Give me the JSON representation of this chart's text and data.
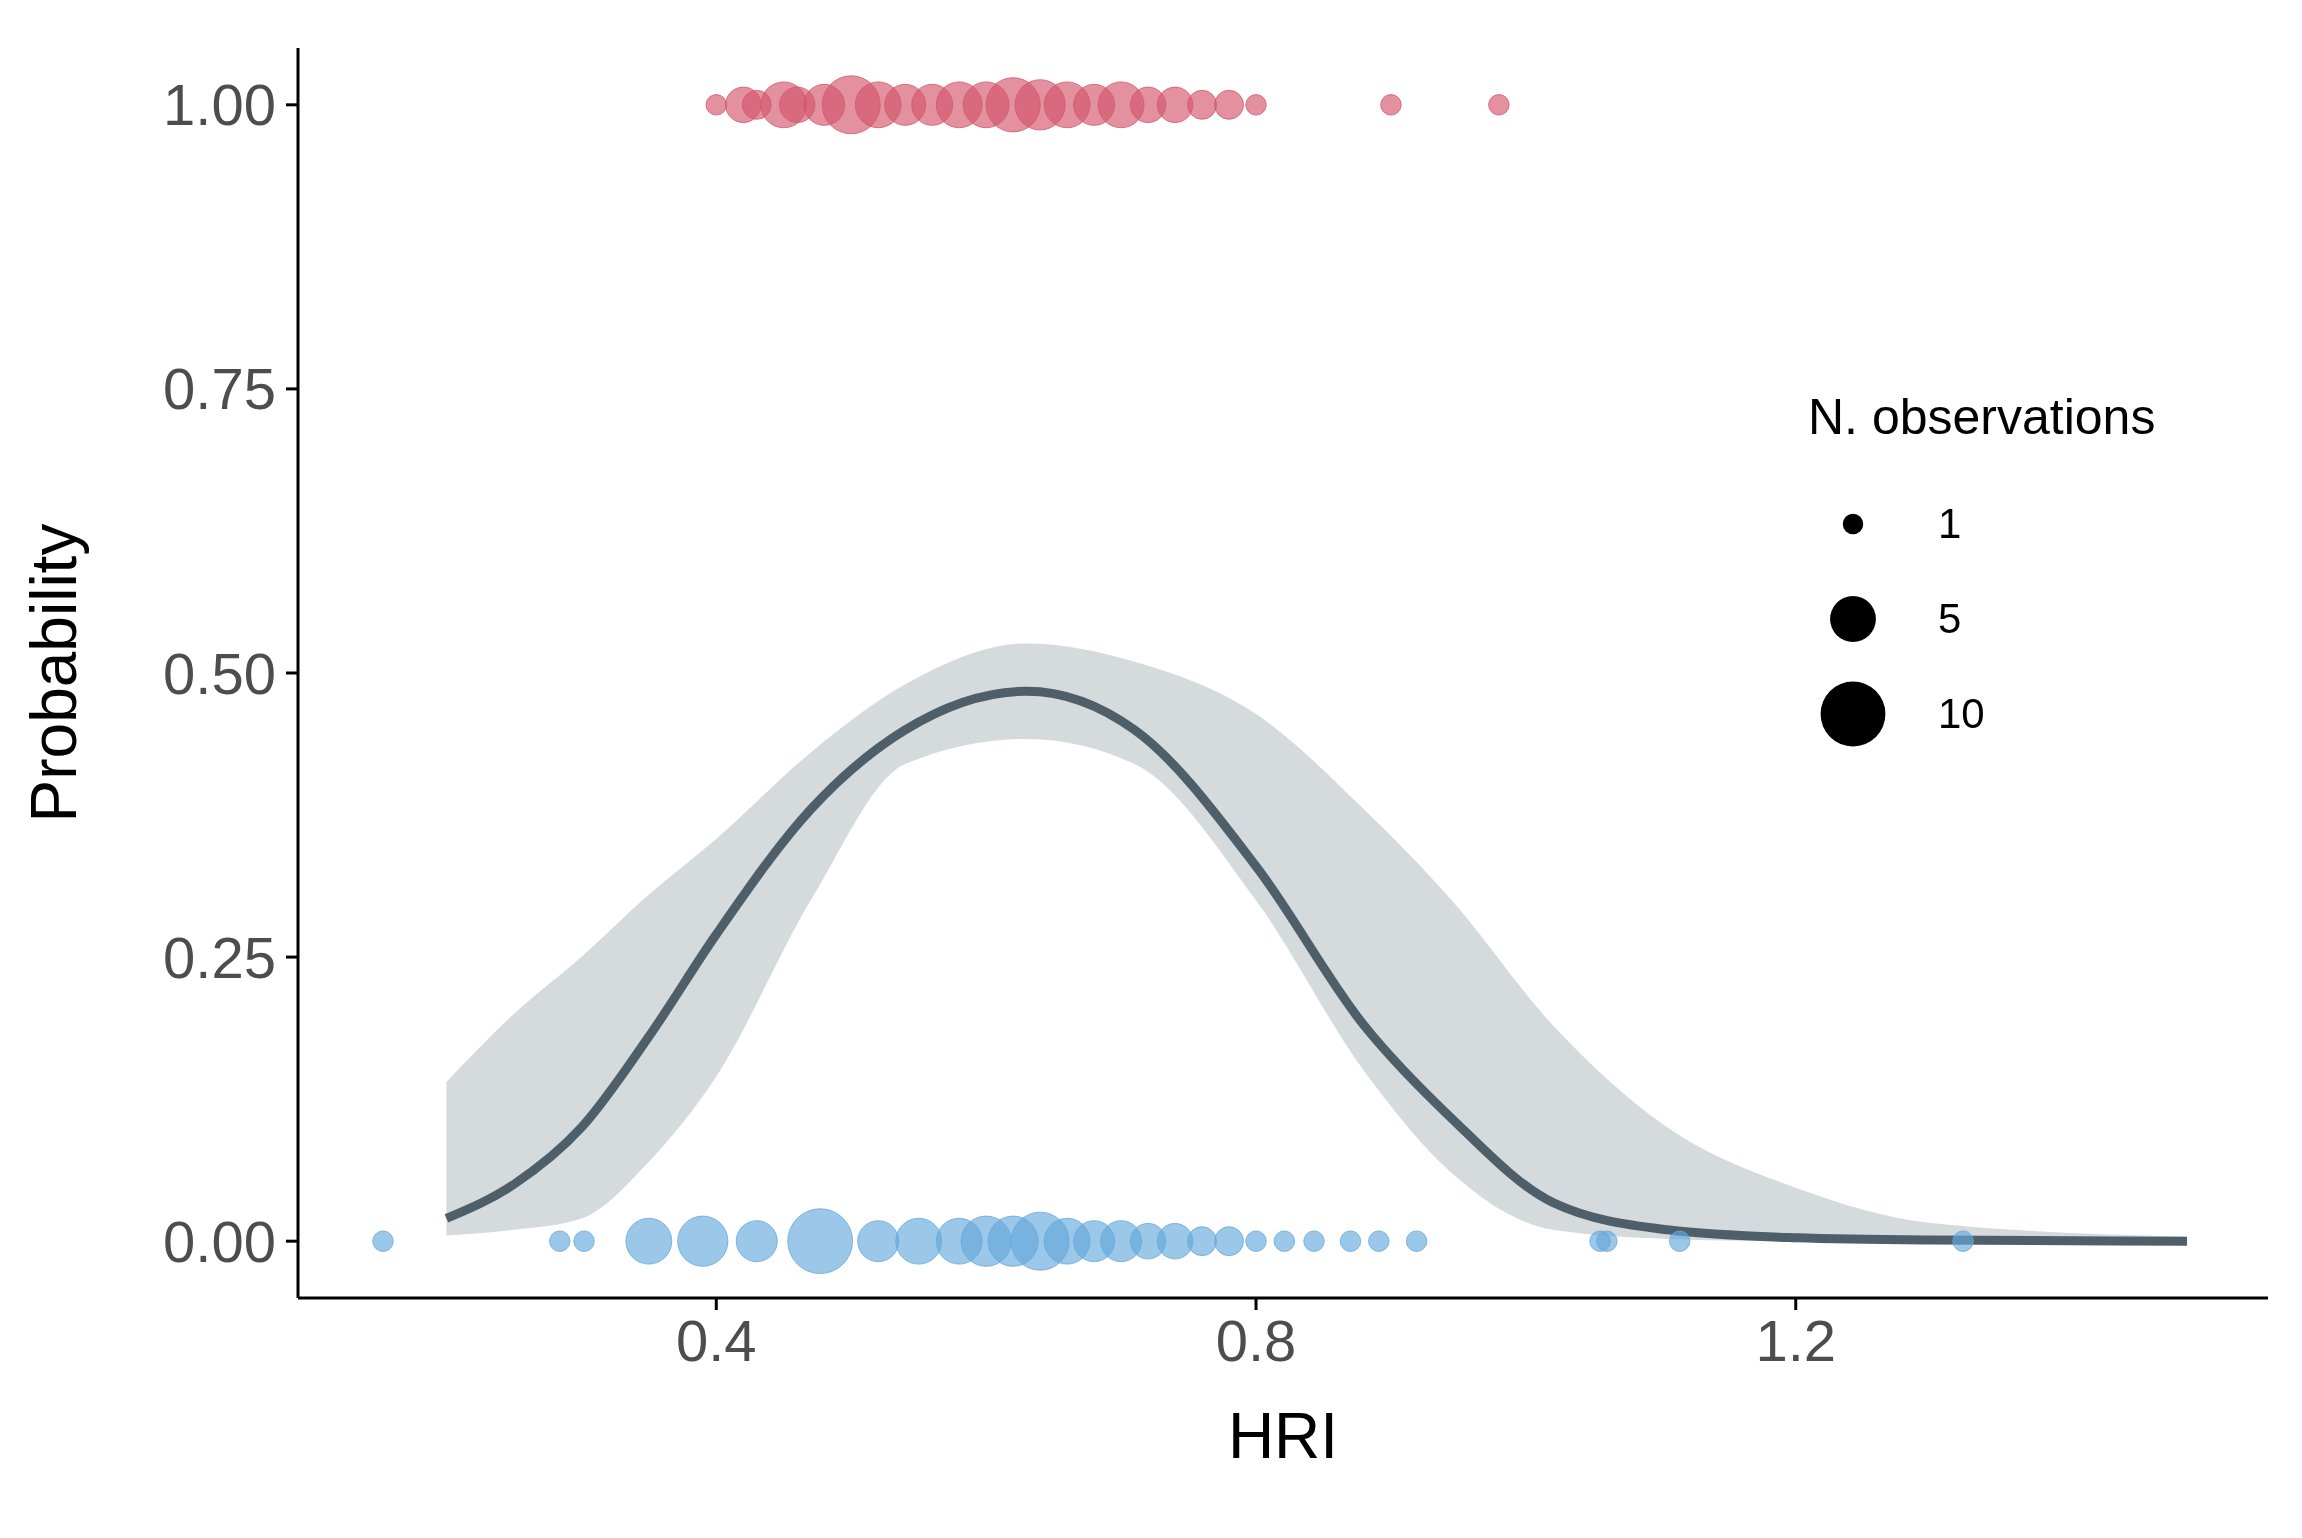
{
  "chart_data": {
    "type": "bubble",
    "xlabel": "HRI",
    "ylabel": "Probability",
    "legend_title": "N. observations",
    "xlim": [
      0.09,
      1.55
    ],
    "xticks": [
      0.4,
      0.8,
      1.2
    ],
    "ylim": [
      -0.05,
      1.05
    ],
    "yticks": [
      {
        "value": 0,
        "label": "0.00"
      },
      {
        "value": 0.25,
        "label": "0.25"
      },
      {
        "value": 0.5,
        "label": "0.50"
      },
      {
        "value": 0.75,
        "label": "0.75"
      },
      {
        "value": 1,
        "label": "1.00"
      }
    ],
    "size_legend": [
      1,
      5,
      10
    ],
    "series": [
      {
        "type": "line",
        "color": "#4e5f6a",
        "x": [
          0.2,
          0.25,
          0.3,
          0.35,
          0.4,
          0.47,
          0.54,
          0.63,
          0.71,
          0.8,
          0.88,
          0.945,
          1.02,
          1.105,
          1.2,
          1.3,
          1.49
        ],
        "values": [
          0.02,
          0.05,
          0.1,
          0.18,
          0.27,
          0.38,
          0.45,
          0.484,
          0.45,
          0.33,
          0.19,
          0.108,
          0.034,
          0.01,
          0.003,
          0.001,
          0
        ],
        "lower": [
          0.005,
          0.01,
          0.02,
          0.07,
          0.145,
          0.3,
          0.42,
          0.442,
          0.42,
          0.3,
          0.15,
          0.06,
          0.01,
          0.002,
          0,
          0,
          0
        ],
        "upper": [
          0.14,
          0.2,
          0.25,
          0.305,
          0.354,
          0.43,
          0.49,
          0.526,
          0.51,
          0.464,
          0.38,
          0.3,
          0.19,
          0.1,
          0.047,
          0.016,
          0.004
        ]
      },
      {
        "type": "scatter",
        "color": "#d4566b",
        "x": [
          0.4,
          0.42,
          0.43,
          0.45,
          0.46,
          0.48,
          0.5,
          0.52,
          0.54,
          0.56,
          0.58,
          0.6,
          0.62,
          0.64,
          0.66,
          0.68,
          0.7,
          0.72,
          0.74,
          0.76,
          0.78,
          0.8,
          0.9,
          0.98
        ],
        "values": [
          1,
          1,
          1,
          1,
          1,
          1,
          1,
          1,
          1,
          1,
          1,
          1,
          1,
          1,
          1,
          1,
          1,
          1,
          1,
          1,
          1,
          1,
          1,
          1
        ],
        "sizes": [
          1,
          3,
          2,
          5,
          3,
          4,
          8,
          5,
          4,
          4,
          5,
          5,
          7,
          6,
          5,
          4,
          5,
          3,
          3,
          2,
          2,
          1,
          1,
          1
        ]
      },
      {
        "type": "scatter",
        "color": "#66a9dc",
        "x": [
          0.153,
          0.284,
          0.302,
          0.35,
          0.39,
          0.43,
          0.477,
          0.52,
          0.55,
          0.58,
          0.6,
          0.62,
          0.64,
          0.66,
          0.68,
          0.7,
          0.72,
          0.74,
          0.76,
          0.78,
          0.8,
          0.821,
          0.843,
          0.87,
          0.891,
          0.919,
          1.055,
          1.06,
          1.114,
          1.324
        ],
        "values": [
          0,
          0,
          0,
          0,
          0,
          0,
          0,
          0,
          0,
          0,
          0,
          0,
          0,
          0,
          0,
          0,
          0,
          0,
          0,
          0,
          0,
          0,
          0,
          0,
          0,
          0,
          0,
          0,
          0,
          0
        ],
        "sizes": [
          1,
          1,
          1,
          5,
          6,
          4,
          10,
          4,
          5,
          5,
          6,
          6,
          8,
          5,
          4,
          4,
          3,
          3,
          2,
          2,
          1,
          1,
          1,
          1,
          1,
          1,
          1,
          1,
          1,
          1
        ]
      }
    ]
  }
}
